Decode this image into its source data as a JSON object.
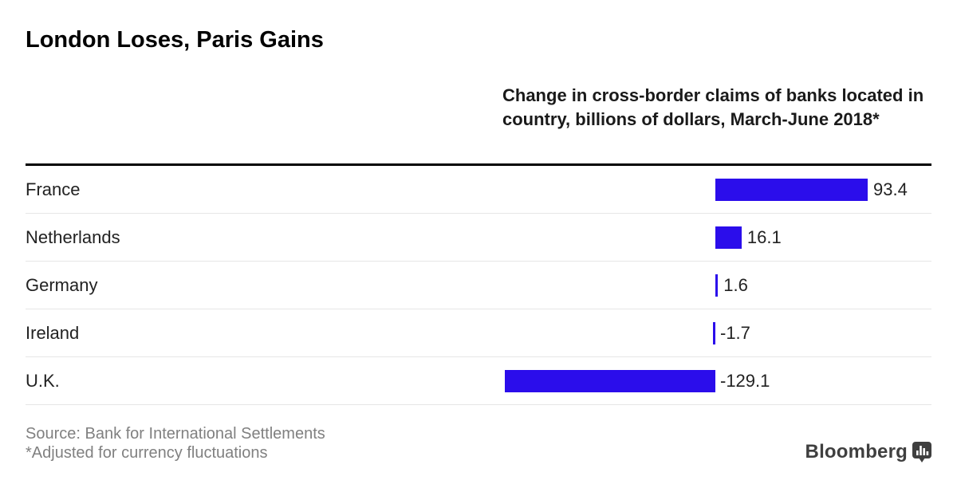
{
  "header": {
    "title": "London Loses, Paris Gains",
    "subtitle": "Change in cross-border claims of banks located in country, billions of dollars, March-June 2018*"
  },
  "chart_data": {
    "type": "bar",
    "orientation": "horizontal",
    "title": "London Loses, Paris Gains",
    "subtitle": "Change in cross-border claims of banks located in country, billions of dollars, March-June 2018*",
    "categories": [
      "France",
      "Netherlands",
      "Germany",
      "Ireland",
      "U.K."
    ],
    "values": [
      93.4,
      16.1,
      1.6,
      -1.7,
      -129.1
    ],
    "value_labels": [
      "93.4",
      "16.1",
      "1.6",
      "-1.7",
      "-129.1"
    ],
    "xlabel": "",
    "ylabel": "",
    "xlim": [
      -135,
      100
    ],
    "grid": false,
    "legend": false,
    "bar_color": "#2B0DEB"
  },
  "footer": {
    "source": "Source: Bank for International Settlements",
    "footnote": "*Adjusted for currency fluctuations"
  },
  "branding": {
    "logo_text": "Bloomberg",
    "logo_icon": "bar-chart-bubble-icon"
  },
  "colors": {
    "bar": "#2B0DEB",
    "title": "#000000",
    "subtitle": "#1a1a1a",
    "row_label": "#222222",
    "divider": "#e6e6e6",
    "top_rule": "#000000",
    "source_text": "#808080",
    "logo": "#3f3f3f"
  }
}
